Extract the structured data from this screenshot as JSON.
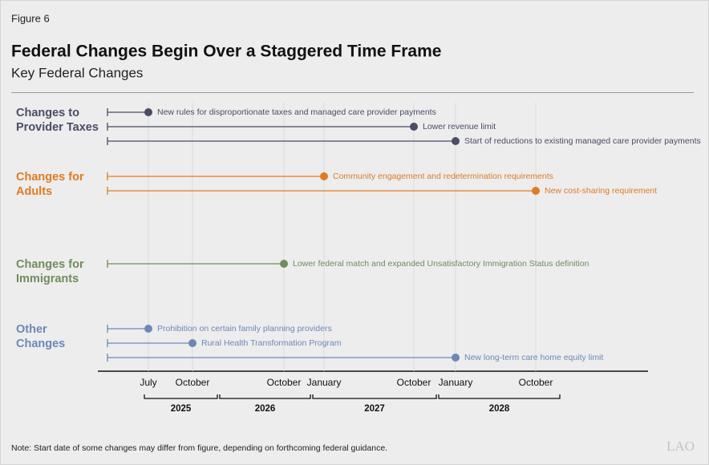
{
  "figure": "Figure 6",
  "chart_data": {
    "type": "timeline",
    "title": "Federal Changes Begin Over a Staggered Time Frame",
    "subtitle": "Key Federal Changes",
    "year_groups": [
      {
        "label": "2025",
        "months": [
          "July",
          "October"
        ]
      },
      {
        "label": "2026",
        "months": [
          "October"
        ]
      },
      {
        "label": "2027",
        "months": [
          "January",
          "October"
        ]
      },
      {
        "label": "2028",
        "months": [
          "January",
          "October"
        ]
      }
    ],
    "groups": [
      {
        "name": [
          "Changes to",
          "Provider Taxes"
        ],
        "color": "#4a4d63",
        "events": [
          {
            "label": "New rules for disproportionate taxes and managed care provider payments",
            "at": 0
          },
          {
            "label": "Lower revenue limit",
            "at": 4
          },
          {
            "label": "Start of reductions to existing managed care provider payments",
            "at": 5
          }
        ]
      },
      {
        "name": [
          "Changes for",
          "Adults"
        ],
        "color": "#e07b24",
        "events": [
          {
            "label": "Community engagement and redetermination requirements",
            "at": 3
          },
          {
            "label": "New cost-sharing requirement",
            "at": 6
          }
        ]
      },
      {
        "name": [
          "Changes for",
          "Immigrants"
        ],
        "color": "#6f8c5f",
        "events": [
          {
            "label": "Lower federal match and expanded Unsatisfactory Immigration Status definition",
            "at": 2
          }
        ]
      },
      {
        "name": [
          "Other",
          "Changes"
        ],
        "color": "#6d88b8",
        "events": [
          {
            "label": "Prohibition on certain family planning providers",
            "at": 0
          },
          {
            "label": "Rural Health Transformation Program",
            "at": 1
          },
          {
            "label": "New long-term care home equity limit",
            "at": 5
          }
        ]
      }
    ],
    "note": "Note: Start date of some changes may differ from figure, depending on forthcoming federal guidance."
  },
  "logo": "LAO"
}
